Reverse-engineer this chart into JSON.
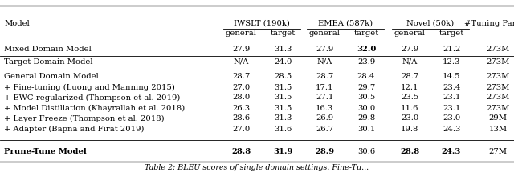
{
  "caption": "Table 2: BLEU scores of single domain settings. Fine-Tu...",
  "rows": [
    {
      "model": "Mixed Domain Model",
      "values": [
        "27.9",
        "31.3",
        "27.9",
        "32.0",
        "27.9",
        "21.2",
        "273M"
      ],
      "model_bold": false,
      "bold_cells": [
        3
      ]
    },
    {
      "model": "Target Domain Model",
      "values": [
        "N/A",
        "24.0",
        "N/A",
        "23.9",
        "N/A",
        "12.3",
        "273M"
      ],
      "model_bold": false,
      "bold_cells": []
    },
    {
      "model": "General Domain Model",
      "values": [
        "28.7",
        "28.5",
        "28.7",
        "28.4",
        "28.7",
        "14.5",
        "273M"
      ],
      "model_bold": false,
      "bold_cells": []
    },
    {
      "model": "+ Fine-tuning (Luong and Manning 2015)",
      "values": [
        "27.0",
        "31.5",
        "17.1",
        "29.7",
        "12.1",
        "23.4",
        "273M"
      ],
      "model_bold": false,
      "bold_cells": []
    },
    {
      "model": "+ EWC-regularized (Thompson et al. 2019)",
      "values": [
        "28.0",
        "31.5",
        "27.1",
        "30.5",
        "23.5",
        "23.1",
        "273M"
      ],
      "model_bold": false,
      "bold_cells": []
    },
    {
      "model": "+ Model Distillation (Khayrallah et al. 2018)",
      "values": [
        "26.3",
        "31.5",
        "16.3",
        "30.0",
        "11.6",
        "23.1",
        "273M"
      ],
      "model_bold": false,
      "bold_cells": []
    },
    {
      "model": "+ Layer Freeze (Thompson et al. 2018)",
      "values": [
        "28.6",
        "31.3",
        "26.9",
        "29.8",
        "23.0",
        "23.0",
        "29M"
      ],
      "model_bold": false,
      "bold_cells": []
    },
    {
      "model": "+ Adapter (Bapna and Firat 2019)",
      "values": [
        "27.0",
        "31.6",
        "26.7",
        "30.1",
        "19.8",
        "24.3",
        "13M"
      ],
      "model_bold": false,
      "bold_cells": []
    },
    {
      "model": "Prune-Tune Model",
      "values": [
        "28.8",
        "31.9",
        "28.9",
        "30.6",
        "28.8",
        "24.3",
        "27M"
      ],
      "model_bold": true,
      "bold_cells": [
        0,
        1,
        2,
        4,
        5
      ]
    }
  ],
  "fontsize": 7.2,
  "caption_fontsize": 6.8
}
